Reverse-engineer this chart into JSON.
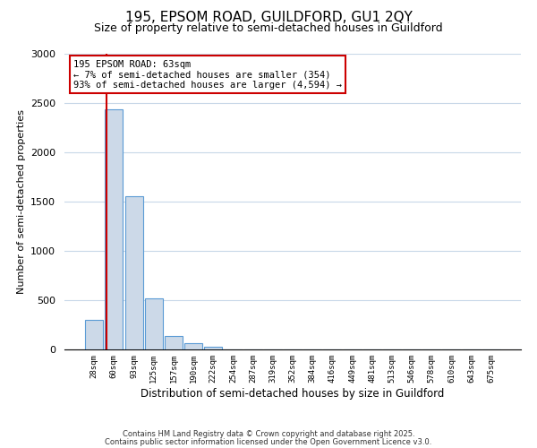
{
  "title1": "195, EPSOM ROAD, GUILDFORD, GU1 2QY",
  "title2": "Size of property relative to semi-detached houses in Guildford",
  "xlabel": "Distribution of semi-detached houses by size in Guildford",
  "ylabel": "Number of semi-detached properties",
  "bar_labels": [
    "28sqm",
    "60sqm",
    "93sqm",
    "125sqm",
    "157sqm",
    "190sqm",
    "222sqm",
    "254sqm",
    "287sqm",
    "319sqm",
    "352sqm",
    "384sqm",
    "416sqm",
    "449sqm",
    "481sqm",
    "513sqm",
    "546sqm",
    "578sqm",
    "610sqm",
    "643sqm",
    "675sqm"
  ],
  "bar_values": [
    300,
    2440,
    1555,
    520,
    140,
    60,
    30,
    0,
    0,
    0,
    0,
    0,
    0,
    0,
    0,
    0,
    0,
    0,
    0,
    0,
    0
  ],
  "bar_color": "#ccd9e8",
  "bar_edge_color": "#5b9bd5",
  "ylim": [
    0,
    3000
  ],
  "yticks": [
    0,
    500,
    1000,
    1500,
    2000,
    2500,
    3000
  ],
  "property_line_color": "#cc0000",
  "annotation_title": "195 EPSOM ROAD: 63sqm",
  "annotation_line1": "← 7% of semi-detached houses are smaller (354)",
  "annotation_line2": "93% of semi-detached houses are larger (4,594) →",
  "annotation_box_color": "#ffffff",
  "annotation_box_edge": "#cc0000",
  "footer1": "Contains HM Land Registry data © Crown copyright and database right 2025.",
  "footer2": "Contains public sector information licensed under the Open Government Licence v3.0.",
  "bg_color": "#ffffff",
  "grid_color": "#c8d8e8"
}
